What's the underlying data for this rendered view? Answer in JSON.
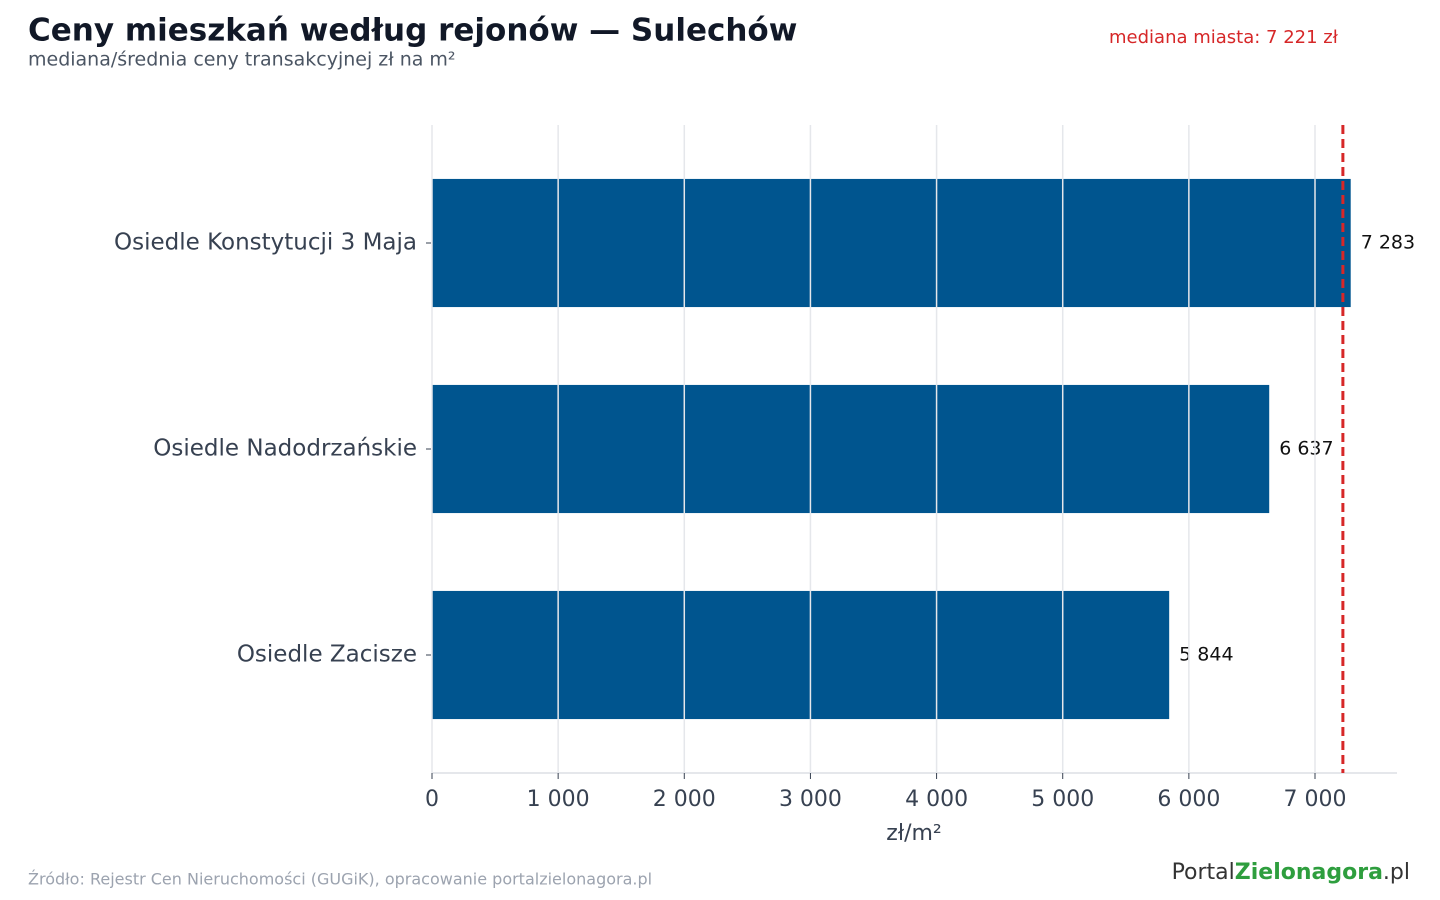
{
  "chart_data": {
    "type": "barh",
    "title": "Ceny mieszkań według rejonów — Sulechów",
    "subtitle": "mediana/średnia ceny transakcyjnej zł na m²",
    "x_label": "zł/m²",
    "categories": [
      "Osiedle Konstytucji 3 Maja",
      "Osiedle Nadodrzańskie",
      "Osiedle Zacisze"
    ],
    "values": [
      7283,
      6637,
      5844
    ],
    "value_labels": [
      "7 283",
      "6 637",
      "5 844"
    ],
    "color": "#00558f",
    "xlim": [
      0,
      7650
    ],
    "xticks": [
      0,
      {
        "value": 1000,
        "label": "1 000"
      },
      {
        "value": 2000,
        "label": "2 000"
      },
      {
        "value": 3000,
        "label": "3 000"
      },
      {
        "value": 4000,
        "label": "4 000"
      },
      {
        "value": 5000,
        "label": "5 000"
      },
      {
        "value": 6000,
        "label": "6 000"
      },
      {
        "value": 7000,
        "label": "7 000"
      }
    ],
    "grid": true,
    "reference_line": {
      "value": 7221,
      "label": "mediana miasta: 7 221 zł",
      "color": "#d62728"
    },
    "source": "Źródło: Rejestr Cen Nieruchomości (GUGiK), opracowanie portalzielonagora.pl",
    "logo": [
      "Portal",
      "Zielonagora",
      ".pl"
    ]
  }
}
